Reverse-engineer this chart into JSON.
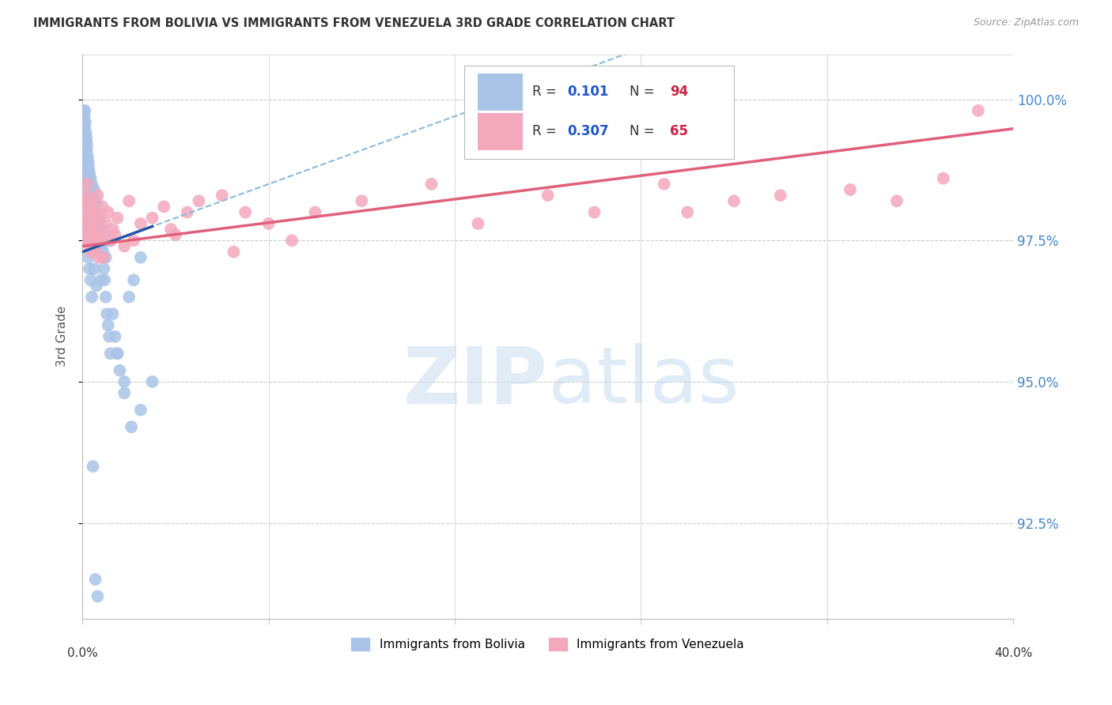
{
  "title": "IMMIGRANTS FROM BOLIVIA VS IMMIGRANTS FROM VENEZUELA 3RD GRADE CORRELATION CHART",
  "source": "Source: ZipAtlas.com",
  "ylabel": "3rd Grade",
  "xlim": [
    0.0,
    40.0
  ],
  "ylim": [
    90.8,
    100.8
  ],
  "bolivia_color": "#aac4e8",
  "venezuela_color": "#f4a8bc",
  "bolivia_R": 0.101,
  "bolivia_N": 94,
  "venezuela_R": 0.307,
  "venezuela_N": 65,
  "bolivia_line_color": "#2255aa",
  "venezuela_line_color": "#e0607a",
  "dashed_line_color": "#88bbdd",
  "ytick_vals": [
    92.5,
    95.0,
    97.5,
    100.0
  ],
  "ytick_labels": [
    "92.5%",
    "95.0%",
    "97.5%",
    "100.0%"
  ],
  "bolivia_x": [
    0.05,
    0.05,
    0.07,
    0.08,
    0.08,
    0.1,
    0.1,
    0.1,
    0.12,
    0.12,
    0.13,
    0.13,
    0.15,
    0.15,
    0.15,
    0.17,
    0.18,
    0.18,
    0.2,
    0.2,
    0.2,
    0.22,
    0.22,
    0.25,
    0.25,
    0.25,
    0.27,
    0.28,
    0.3,
    0.3,
    0.32,
    0.33,
    0.35,
    0.35,
    0.38,
    0.4,
    0.4,
    0.42,
    0.45,
    0.45,
    0.48,
    0.5,
    0.5,
    0.52,
    0.55,
    0.58,
    0.6,
    0.6,
    0.62,
    0.65,
    0.68,
    0.7,
    0.72,
    0.75,
    0.78,
    0.8,
    0.82,
    0.85,
    0.88,
    0.9,
    0.92,
    0.95,
    1.0,
    1.05,
    1.1,
    1.15,
    1.2,
    1.3,
    1.4,
    1.5,
    1.6,
    1.8,
    2.0,
    2.2,
    2.5,
    0.15,
    0.2,
    0.25,
    0.3,
    0.35,
    0.4,
    0.5,
    0.6,
    0.8,
    1.0,
    1.2,
    1.5,
    1.8,
    2.1,
    2.5,
    3.0,
    0.45,
    0.55,
    0.65
  ],
  "bolivia_y": [
    99.8,
    99.5,
    99.6,
    99.7,
    99.4,
    99.8,
    99.5,
    99.2,
    99.6,
    99.3,
    99.1,
    98.9,
    99.4,
    99.0,
    98.8,
    99.3,
    99.1,
    98.7,
    99.2,
    98.9,
    98.6,
    99.0,
    98.7,
    98.9,
    98.6,
    98.3,
    98.8,
    98.5,
    98.7,
    98.4,
    98.5,
    98.3,
    98.6,
    98.2,
    98.4,
    98.5,
    98.2,
    98.3,
    98.3,
    98.0,
    98.2,
    98.4,
    98.1,
    98.2,
    98.0,
    98.1,
    97.9,
    98.2,
    97.8,
    98.0,
    97.7,
    97.9,
    97.6,
    97.8,
    97.5,
    97.7,
    97.4,
    97.5,
    97.3,
    97.2,
    97.0,
    96.8,
    96.5,
    96.2,
    96.0,
    95.8,
    95.5,
    96.2,
    95.8,
    95.5,
    95.2,
    95.0,
    96.5,
    96.8,
    97.2,
    97.8,
    97.5,
    97.2,
    97.0,
    96.8,
    96.5,
    97.0,
    96.7,
    96.8,
    97.2,
    97.5,
    95.5,
    94.8,
    94.2,
    94.5,
    95.0,
    93.5,
    91.5,
    91.2
  ],
  "venezuela_x": [
    0.05,
    0.08,
    0.1,
    0.12,
    0.15,
    0.18,
    0.2,
    0.22,
    0.25,
    0.28,
    0.3,
    0.33,
    0.35,
    0.38,
    0.4,
    0.45,
    0.5,
    0.55,
    0.6,
    0.65,
    0.7,
    0.75,
    0.8,
    0.85,
    0.9,
    1.0,
    1.1,
    1.2,
    1.3,
    1.5,
    1.8,
    2.0,
    2.5,
    3.0,
    3.5,
    4.0,
    4.5,
    5.0,
    6.0,
    7.0,
    8.0,
    9.0,
    10.0,
    12.0,
    15.0,
    17.0,
    20.0,
    22.0,
    25.0,
    28.0,
    30.0,
    33.0,
    35.0,
    37.0,
    38.5,
    0.42,
    0.48,
    0.55,
    0.7,
    0.9,
    1.4,
    2.2,
    3.8,
    6.5,
    26.0
  ],
  "venezuela_y": [
    98.0,
    97.5,
    98.2,
    97.8,
    98.3,
    97.6,
    98.5,
    97.9,
    97.7,
    98.1,
    97.4,
    98.0,
    97.3,
    97.6,
    98.2,
    97.8,
    97.5,
    98.0,
    97.7,
    98.3,
    97.2,
    97.9,
    97.5,
    98.1,
    97.6,
    97.8,
    98.0,
    97.5,
    97.7,
    97.9,
    97.4,
    98.2,
    97.8,
    97.9,
    98.1,
    97.6,
    98.0,
    98.2,
    98.3,
    98.0,
    97.8,
    97.5,
    98.0,
    98.2,
    98.5,
    97.8,
    98.3,
    98.0,
    98.5,
    98.2,
    98.3,
    98.4,
    98.2,
    98.6,
    99.8,
    97.4,
    97.6,
    97.3,
    97.5,
    97.2,
    97.6,
    97.5,
    97.7,
    97.3,
    98.0
  ]
}
